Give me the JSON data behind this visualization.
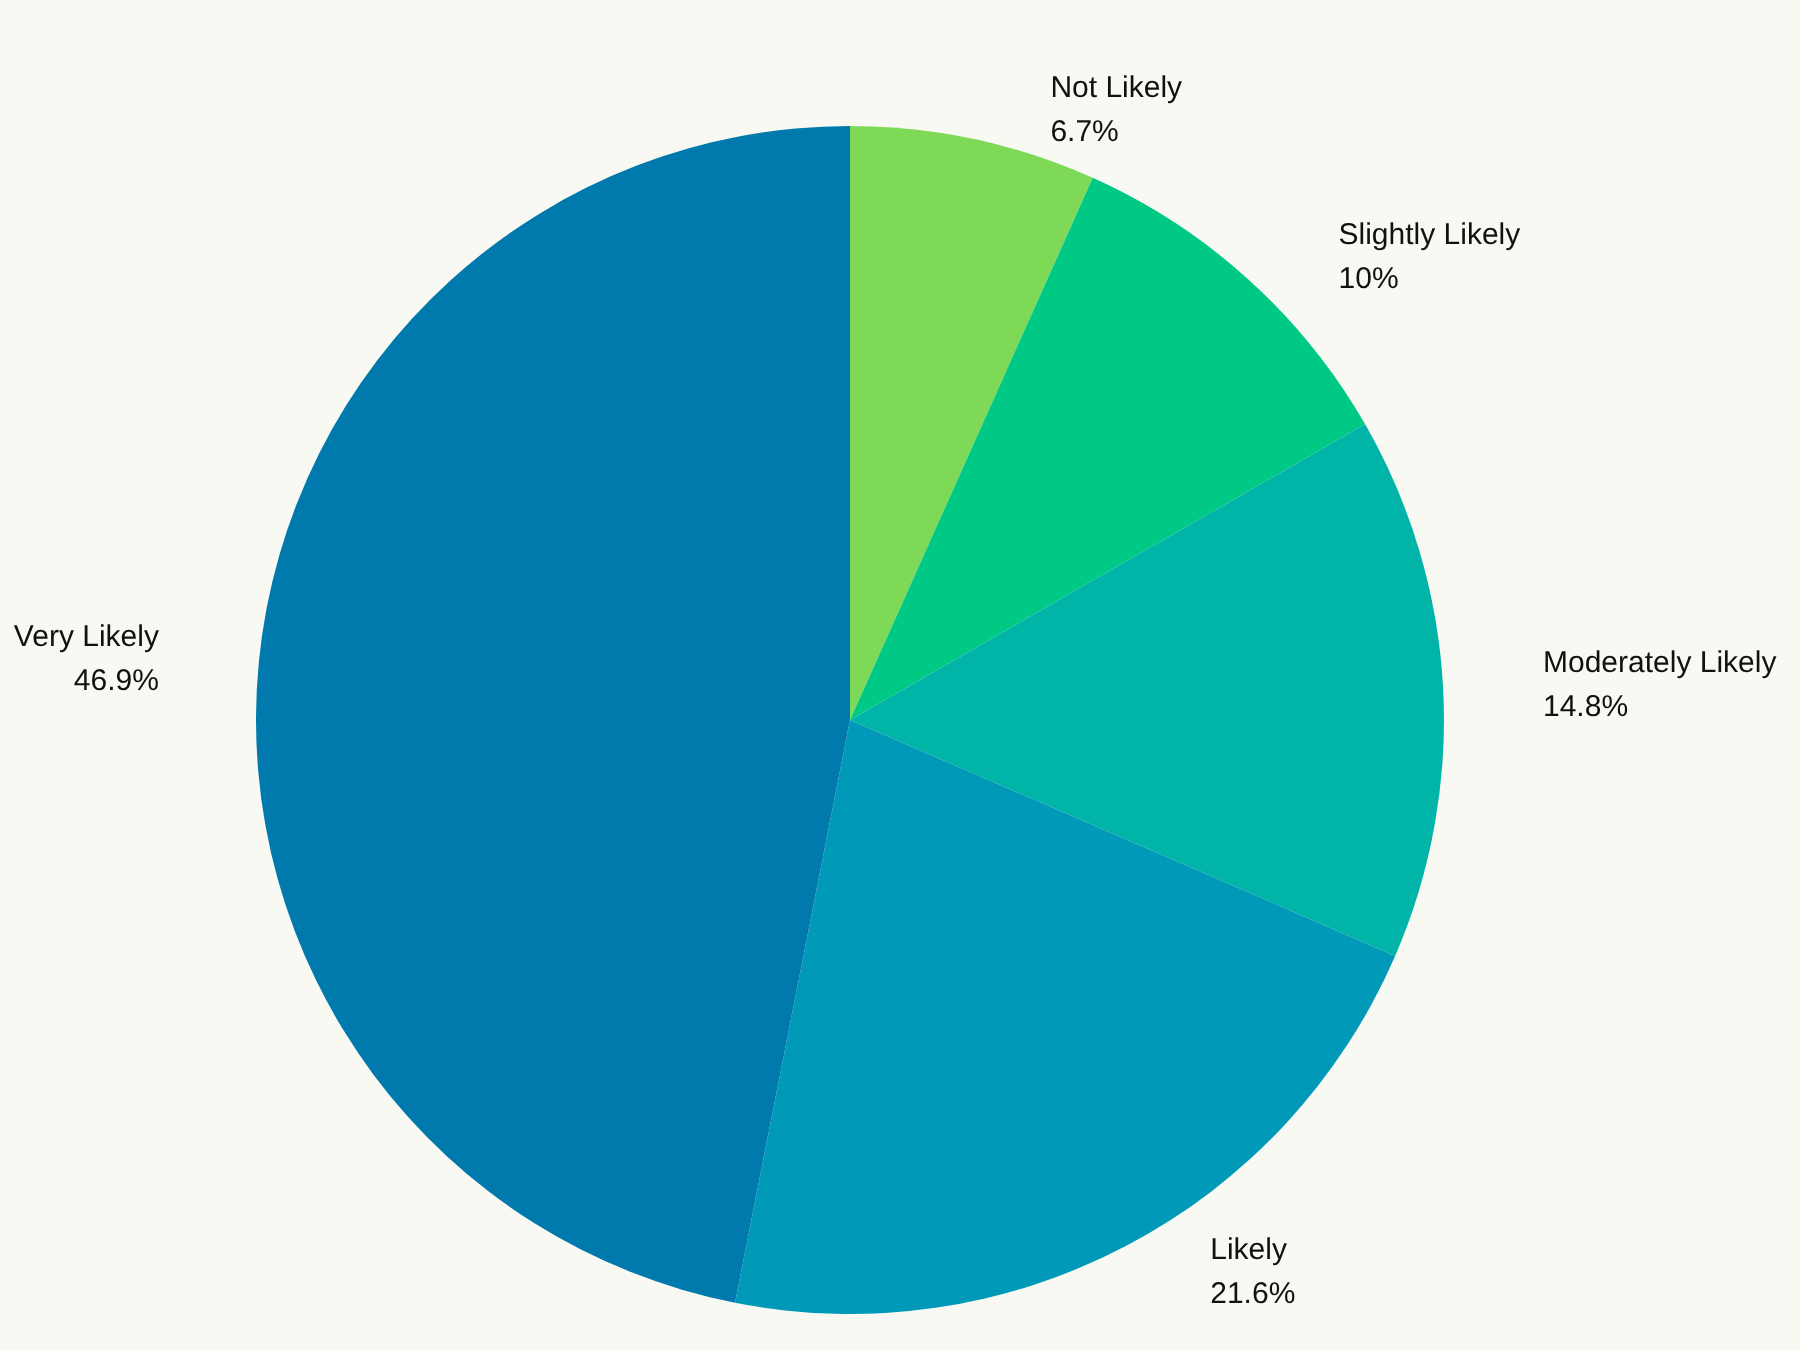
{
  "chart_data": {
    "type": "pie",
    "categories": [
      "Not Likely",
      "Slightly Likely",
      "Moderately Likely",
      "Likely",
      "Very Likely"
    ],
    "values": [
      6.7,
      10,
      14.8,
      21.6,
      46.9
    ],
    "value_labels": [
      "6.7%",
      "10%",
      "14.8%",
      "21.6%",
      "46.9%"
    ],
    "colors": [
      "#7ed957",
      "#00c985",
      "#00b5a8",
      "#009ab8",
      "#0079ad"
    ],
    "legend": false
  }
}
